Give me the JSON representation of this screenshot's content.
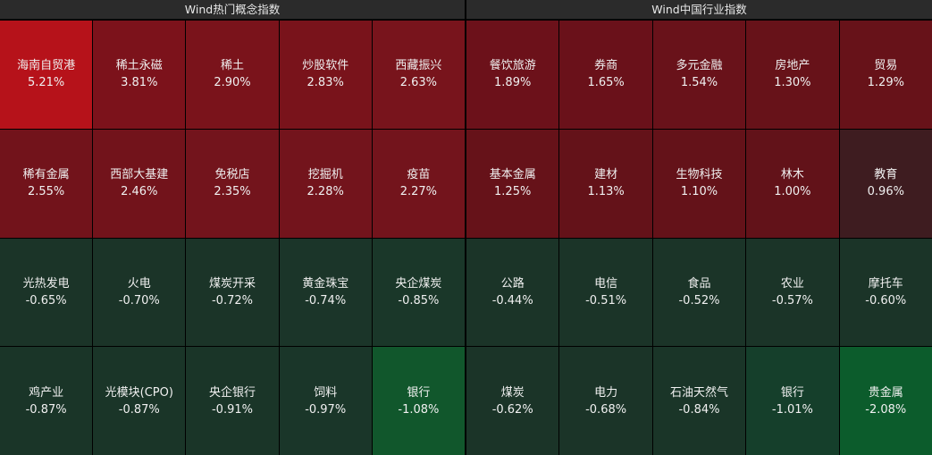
{
  "panels": [
    {
      "title": "Wind热门概念指数",
      "tiles": [
        {
          "name": "海南自贸港",
          "value": "5.21%",
          "color": "#b6121a"
        },
        {
          "name": "稀土永磁",
          "value": "3.81%",
          "color": "#7c121b"
        },
        {
          "name": "稀土",
          "value": "2.90%",
          "color": "#7a131b"
        },
        {
          "name": "炒股软件",
          "value": "2.83%",
          "color": "#79131b"
        },
        {
          "name": "西藏振兴",
          "value": "2.63%",
          "color": "#78141c"
        },
        {
          "name": "稀有金属",
          "value": "2.55%",
          "color": "#72131b"
        },
        {
          "name": "西部大基建",
          "value": "2.46%",
          "color": "#72131b"
        },
        {
          "name": "免税店",
          "value": "2.35%",
          "color": "#73141c"
        },
        {
          "name": "挖掘机",
          "value": "2.28%",
          "color": "#73141c"
        },
        {
          "name": "疫苗",
          "value": "2.27%",
          "color": "#73141c"
        },
        {
          "name": "光热发电",
          "value": "-0.65%",
          "color": "#1b3428"
        },
        {
          "name": "火电",
          "value": "-0.70%",
          "color": "#1b3428"
        },
        {
          "name": "煤炭开采",
          "value": "-0.72%",
          "color": "#1b3428"
        },
        {
          "name": "黄金珠宝",
          "value": "-0.74%",
          "color": "#1b3529"
        },
        {
          "name": "央企煤炭",
          "value": "-0.85%",
          "color": "#1a3729"
        },
        {
          "name": "鸡产业",
          "value": "-0.87%",
          "color": "#1a3528"
        },
        {
          "name": "光模块(CPO)",
          "value": "-0.87%",
          "color": "#1a3528"
        },
        {
          "name": "央企银行",
          "value": "-0.91%",
          "color": "#1a3528"
        },
        {
          "name": "饲料",
          "value": "-0.97%",
          "color": "#1a3629"
        },
        {
          "name": "银行",
          "value": "-1.08%",
          "color": "#11572c"
        }
      ]
    },
    {
      "title": "Wind中国行业指数",
      "tiles": [
        {
          "name": "餐饮旅游",
          "value": "1.89%",
          "color": "#6c111a"
        },
        {
          "name": "券商",
          "value": "1.65%",
          "color": "#6a111a"
        },
        {
          "name": "多元金融",
          "value": "1.54%",
          "color": "#69121a"
        },
        {
          "name": "房地产",
          "value": "1.30%",
          "color": "#671219"
        },
        {
          "name": "贸易",
          "value": "1.29%",
          "color": "#671219"
        },
        {
          "name": "基本金属",
          "value": "1.25%",
          "color": "#661219"
        },
        {
          "name": "建材",
          "value": "1.13%",
          "color": "#641219"
        },
        {
          "name": "生物科技",
          "value": "1.10%",
          "color": "#641219"
        },
        {
          "name": "林木",
          "value": "1.00%",
          "color": "#621219"
        },
        {
          "name": "教育",
          "value": "0.96%",
          "color": "#3e1c20"
        },
        {
          "name": "公路",
          "value": "-0.44%",
          "color": "#1b3428"
        },
        {
          "name": "电信",
          "value": "-0.51%",
          "color": "#1b3428"
        },
        {
          "name": "食品",
          "value": "-0.52%",
          "color": "#1b3428"
        },
        {
          "name": "农业",
          "value": "-0.57%",
          "color": "#1b3428"
        },
        {
          "name": "摩托车",
          "value": "-0.60%",
          "color": "#1b3428"
        },
        {
          "name": "煤炭",
          "value": "-0.62%",
          "color": "#1b3428"
        },
        {
          "name": "电力",
          "value": "-0.68%",
          "color": "#1b3428"
        },
        {
          "name": "石油天然气",
          "value": "-0.84%",
          "color": "#1a3528"
        },
        {
          "name": "银行",
          "value": "-1.01%",
          "color": "#153f2b"
        },
        {
          "name": "贵金属",
          "value": "-2.08%",
          "color": "#0c5c2c"
        }
      ]
    }
  ]
}
